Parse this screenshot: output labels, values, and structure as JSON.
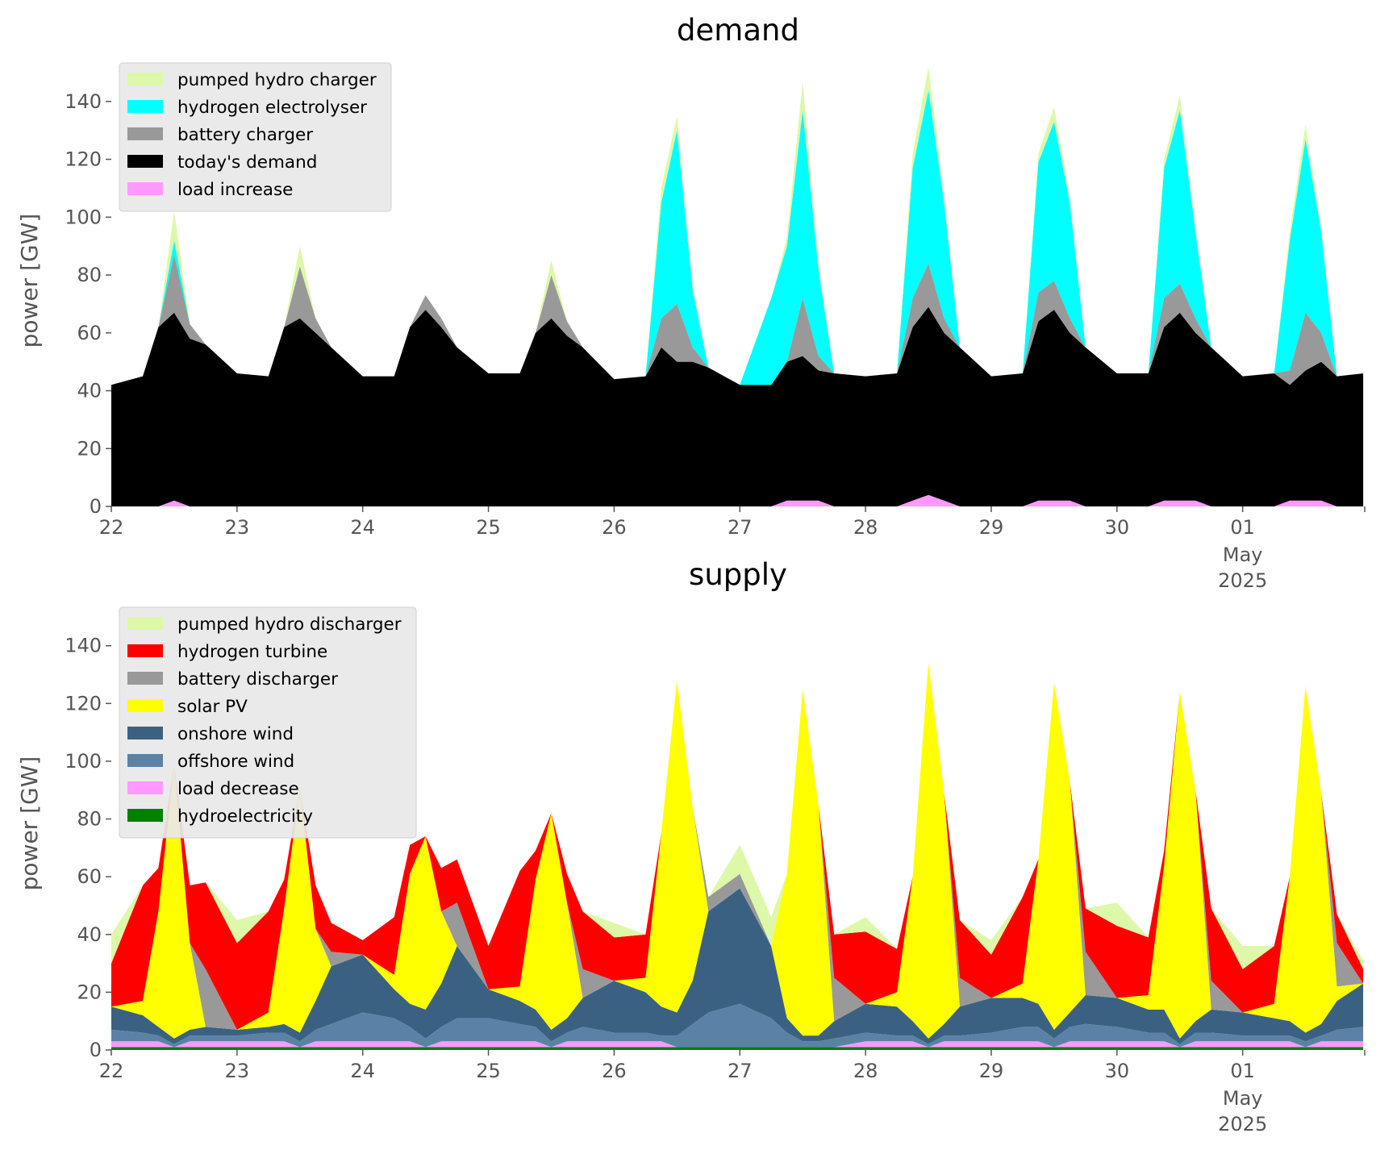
{
  "colors": {
    "background": "#ffffff",
    "legend_bg": "#e8e8e8",
    "tick_text": "#555555"
  },
  "chart_data": [
    {
      "type": "area",
      "stacked": true,
      "title": "demand",
      "ylabel": "power [GW]",
      "xlabel": "",
      "x_ticks": [
        "22",
        "23",
        "24",
        "25",
        "26",
        "27",
        "28",
        "29",
        "30",
        "01",
        "May",
        "2025"
      ],
      "y_ticks": [
        "0",
        "20",
        "40",
        "60",
        "80",
        "100",
        "120",
        "140"
      ],
      "ylim": [
        0,
        155
      ],
      "xlim": [
        "2025-04-22",
        "2025-05-01 23:00"
      ],
      "grid": false,
      "legend_position": "top-left",
      "x_hours": [
        0,
        6,
        9,
        12,
        15,
        18,
        24,
        30,
        33,
        36,
        39,
        42,
        48,
        54,
        57,
        60,
        63,
        66,
        72,
        78,
        81,
        84,
        87,
        90,
        96,
        102,
        105,
        108,
        111,
        114,
        120,
        126,
        129,
        132,
        135,
        138,
        144,
        150,
        153,
        156,
        159,
        162,
        168,
        174,
        177,
        180,
        183,
        186,
        192,
        198,
        201,
        204,
        207,
        210,
        216,
        222,
        225,
        228,
        231,
        234,
        239
      ],
      "series": [
        {
          "name": "load increase",
          "color": "#ff99ff",
          "values": [
            0,
            0,
            0,
            2,
            0,
            0,
            0,
            0,
            0,
            0,
            0,
            0,
            0,
            0,
            0,
            0,
            0,
            0,
            0,
            0,
            0,
            0,
            0,
            0,
            0,
            0,
            0,
            0,
            0,
            0,
            0,
            0,
            2,
            2,
            2,
            0,
            0,
            0,
            2,
            4,
            2,
            0,
            0,
            0,
            2,
            2,
            2,
            0,
            0,
            0,
            2,
            2,
            2,
            0,
            0,
            0,
            2,
            2,
            2,
            0,
            0
          ]
        },
        {
          "name": "today's demand",
          "color": "#000000",
          "values": [
            42,
            45,
            62,
            65,
            58,
            56,
            46,
            45,
            62,
            65,
            60,
            55,
            45,
            45,
            62,
            68,
            62,
            55,
            46,
            46,
            60,
            65,
            59,
            55,
            44,
            45,
            55,
            50,
            50,
            48,
            42,
            42,
            48,
            50,
            45,
            46,
            45,
            46,
            60,
            65,
            58,
            55,
            45,
            46,
            62,
            66,
            58,
            55,
            46,
            46,
            60,
            65,
            58,
            55,
            45,
            46,
            40,
            45,
            48,
            45,
            46
          ]
        },
        {
          "name": "battery charger",
          "color": "#999999",
          "values": [
            0,
            0,
            0,
            20,
            5,
            0,
            0,
            0,
            0,
            18,
            5,
            0,
            0,
            0,
            0,
            5,
            3,
            0,
            0,
            0,
            0,
            15,
            5,
            0,
            0,
            0,
            10,
            20,
            5,
            0,
            0,
            0,
            0,
            20,
            5,
            0,
            0,
            0,
            10,
            15,
            5,
            0,
            0,
            0,
            10,
            10,
            5,
            0,
            0,
            0,
            10,
            10,
            5,
            0,
            0,
            0,
            5,
            20,
            10,
            0,
            0
          ]
        },
        {
          "name": "hydrogen electrolyser",
          "color": "#00ffff",
          "values": [
            0,
            0,
            0,
            5,
            0,
            0,
            0,
            0,
            0,
            0,
            0,
            0,
            0,
            0,
            0,
            0,
            0,
            0,
            0,
            0,
            0,
            0,
            0,
            0,
            0,
            0,
            40,
            60,
            20,
            0,
            0,
            30,
            40,
            65,
            30,
            0,
            0,
            0,
            45,
            60,
            40,
            0,
            0,
            0,
            45,
            55,
            40,
            0,
            0,
            0,
            45,
            60,
            30,
            0,
            0,
            0,
            45,
            60,
            35,
            0,
            0
          ]
        },
        {
          "name": "pumped hydro charger",
          "color": "#ddf8a8",
          "values": [
            0,
            0,
            0,
            10,
            0,
            0,
            0,
            0,
            0,
            7,
            0,
            0,
            0,
            0,
            0,
            0,
            0,
            0,
            0,
            0,
            0,
            5,
            0,
            0,
            0,
            0,
            5,
            5,
            2,
            0,
            0,
            0,
            3,
            10,
            3,
            0,
            0,
            0,
            5,
            8,
            3,
            0,
            0,
            0,
            3,
            5,
            2,
            0,
            0,
            0,
            3,
            5,
            2,
            0,
            0,
            0,
            3,
            5,
            2,
            0,
            0
          ]
        }
      ],
      "legend_order": [
        "pumped hydro charger",
        "hydrogen electrolyser",
        "battery charger",
        "today's demand",
        "load increase"
      ]
    },
    {
      "type": "area",
      "stacked": true,
      "title": "supply",
      "ylabel": "power [GW]",
      "xlabel": "",
      "x_ticks": [
        "22",
        "23",
        "24",
        "25",
        "26",
        "27",
        "28",
        "29",
        "30",
        "01",
        "May",
        "2025"
      ],
      "y_ticks": [
        "0",
        "20",
        "40",
        "60",
        "80",
        "100",
        "120",
        "140"
      ],
      "ylim": [
        0,
        155
      ],
      "xlim": [
        "2025-04-22",
        "2025-05-01 23:00"
      ],
      "grid": false,
      "legend_position": "top-left",
      "x_hours": [
        0,
        6,
        9,
        12,
        15,
        18,
        24,
        30,
        33,
        36,
        39,
        42,
        48,
        54,
        57,
        60,
        63,
        66,
        72,
        78,
        81,
        84,
        87,
        90,
        96,
        102,
        105,
        108,
        111,
        114,
        120,
        126,
        129,
        132,
        135,
        138,
        144,
        150,
        153,
        156,
        159,
        162,
        168,
        174,
        177,
        180,
        183,
        186,
        192,
        198,
        201,
        204,
        207,
        210,
        216,
        222,
        225,
        228,
        231,
        234,
        239
      ],
      "series": [
        {
          "name": "hydroelectricity",
          "color": "#008000",
          "values": [
            1,
            1,
            1,
            1,
            1,
            1,
            1,
            1,
            1,
            1,
            1,
            1,
            1,
            1,
            1,
            1,
            1,
            1,
            1,
            1,
            1,
            1,
            1,
            1,
            1,
            1,
            1,
            1,
            1,
            1,
            1,
            1,
            1,
            1,
            1,
            1,
            1,
            1,
            1,
            1,
            1,
            1,
            1,
            1,
            1,
            1,
            1,
            1,
            1,
            1,
            1,
            1,
            1,
            1,
            1,
            1,
            1,
            1,
            1,
            1,
            1
          ]
        },
        {
          "name": "load decrease",
          "color": "#ff99ff",
          "values": [
            2,
            2,
            2,
            0,
            2,
            2,
            2,
            2,
            2,
            0,
            2,
            2,
            2,
            2,
            2,
            0,
            2,
            2,
            2,
            2,
            2,
            0,
            2,
            2,
            2,
            2,
            2,
            0,
            0,
            0,
            0,
            0,
            0,
            0,
            0,
            0,
            2,
            2,
            2,
            0,
            2,
            2,
            2,
            2,
            2,
            0,
            2,
            2,
            2,
            2,
            2,
            0,
            2,
            2,
            2,
            2,
            2,
            0,
            2,
            2,
            2
          ]
        },
        {
          "name": "offshore wind",
          "color": "#5b82a6",
          "values": [
            4,
            3,
            2,
            1,
            2,
            2,
            2,
            3,
            3,
            2,
            4,
            6,
            10,
            8,
            5,
            3,
            5,
            8,
            8,
            6,
            5,
            2,
            3,
            5,
            3,
            3,
            2,
            4,
            8,
            12,
            15,
            10,
            5,
            2,
            2,
            3,
            3,
            2,
            2,
            1,
            2,
            2,
            3,
            5,
            5,
            3,
            5,
            6,
            5,
            3,
            3,
            1,
            3,
            3,
            2,
            2,
            2,
            2,
            2,
            4,
            5
          ]
        },
        {
          "name": "onshore wind",
          "color": "#3b6182",
          "values": [
            8,
            6,
            3,
            2,
            2,
            3,
            2,
            2,
            3,
            3,
            10,
            20,
            20,
            10,
            8,
            10,
            15,
            25,
            10,
            8,
            6,
            4,
            5,
            10,
            18,
            14,
            10,
            8,
            15,
            35,
            40,
            25,
            5,
            2,
            2,
            6,
            10,
            10,
            5,
            2,
            4,
            10,
            12,
            10,
            8,
            3,
            5,
            10,
            10,
            8,
            8,
            2,
            4,
            8,
            8,
            6,
            5,
            3,
            4,
            10,
            15
          ]
        },
        {
          "name": "solar PV",
          "color": "#ffff00",
          "values": [
            0,
            5,
            40,
            95,
            30,
            0,
            0,
            5,
            40,
            85,
            25,
            0,
            0,
            5,
            45,
            60,
            25,
            0,
            0,
            5,
            45,
            75,
            40,
            0,
            0,
            5,
            60,
            115,
            60,
            0,
            0,
            0,
            50,
            120,
            80,
            0,
            0,
            5,
            50,
            130,
            80,
            0,
            0,
            5,
            50,
            120,
            80,
            0,
            0,
            5,
            50,
            120,
            80,
            0,
            0,
            5,
            50,
            120,
            80,
            5,
            0
          ]
        },
        {
          "name": "battery discharger",
          "color": "#999999",
          "values": [
            0,
            0,
            0,
            0,
            0,
            20,
            0,
            0,
            0,
            0,
            0,
            5,
            0,
            0,
            0,
            0,
            0,
            15,
            0,
            0,
            0,
            0,
            0,
            10,
            0,
            0,
            0,
            0,
            0,
            5,
            5,
            0,
            0,
            0,
            0,
            15,
            0,
            0,
            0,
            0,
            0,
            10,
            0,
            0,
            0,
            0,
            0,
            15,
            0,
            0,
            0,
            0,
            0,
            10,
            0,
            0,
            0,
            0,
            0,
            15,
            0
          ]
        },
        {
          "name": "hydrogen turbine",
          "color": "#ff0000",
          "values": [
            15,
            40,
            15,
            0,
            20,
            30,
            30,
            35,
            10,
            0,
            15,
            10,
            5,
            20,
            10,
            0,
            15,
            15,
            15,
            40,
            10,
            0,
            10,
            20,
            15,
            15,
            0,
            0,
            0,
            0,
            0,
            0,
            0,
            0,
            0,
            15,
            25,
            15,
            0,
            0,
            0,
            20,
            15,
            30,
            0,
            0,
            0,
            15,
            25,
            20,
            5,
            0,
            0,
            25,
            15,
            20,
            0,
            0,
            0,
            10,
            5
          ]
        },
        {
          "name": "pumped hydro discharger",
          "color": "#ddf8a8",
          "values": [
            10,
            0,
            0,
            0,
            0,
            0,
            8,
            0,
            0,
            0,
            0,
            0,
            0,
            0,
            0,
            0,
            0,
            0,
            0,
            0,
            0,
            0,
            0,
            0,
            5,
            0,
            0,
            0,
            0,
            0,
            10,
            10,
            0,
            0,
            0,
            0,
            5,
            0,
            0,
            0,
            0,
            0,
            5,
            0,
            0,
            0,
            0,
            0,
            8,
            0,
            0,
            0,
            0,
            0,
            8,
            0,
            0,
            0,
            0,
            0,
            3
          ]
        }
      ],
      "legend_order": [
        "pumped hydro discharger",
        "hydrogen turbine",
        "battery discharger",
        "solar PV",
        "onshore wind",
        "offshore wind",
        "load decrease",
        "hydroelectricity"
      ]
    }
  ]
}
